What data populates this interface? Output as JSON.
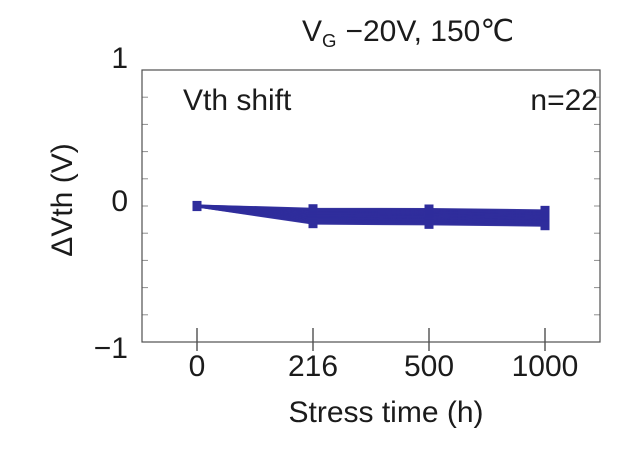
{
  "chart_data": {
    "type": "line",
    "title": "V_G −20V, 150℃",
    "title_parts": {
      "main": "V",
      "sub": "G",
      "rest": "−20V, 150℃"
    },
    "annotations": {
      "series_label": "Vth shift",
      "n_label": "n=22",
      "n": 22
    },
    "xlabel": "Stress time (h)",
    "ylabel": "ΔVth (V)",
    "x_categories": [
      0,
      216,
      500,
      1000
    ],
    "xtick_labels": [
      "0",
      "216",
      "500",
      "1000"
    ],
    "x_axis_note": "category ticks equally spaced",
    "ylim": [
      -1,
      1
    ],
    "ytick_labels": [
      "1",
      "0",
      "−1"
    ],
    "ytick_values": [
      1,
      0,
      -1
    ],
    "y_minor_step": 0.2,
    "n_series": 22,
    "series_color": "#2f2d9c",
    "axis_color": "#4f4f4f",
    "minor_tick_color": "#8f8f8f",
    "text_color": "#1b1b1b",
    "series": [
      [
        0.004,
        -0.02,
        -0.022,
        -0.032
      ],
      [
        0.004,
        -0.025,
        -0.027,
        -0.037
      ],
      [
        0.003,
        -0.03,
        -0.033,
        -0.043
      ],
      [
        0.003,
        -0.036,
        -0.038,
        -0.048
      ],
      [
        0.002,
        -0.041,
        -0.044,
        -0.054
      ],
      [
        0.002,
        -0.046,
        -0.049,
        -0.059
      ],
      [
        0.002,
        -0.051,
        -0.054,
        -0.064
      ],
      [
        0.001,
        -0.057,
        -0.06,
        -0.07
      ],
      [
        0.001,
        -0.062,
        -0.065,
        -0.075
      ],
      [
        0.001,
        -0.067,
        -0.07,
        -0.08
      ],
      [
        0.0,
        -0.072,
        -0.076,
        -0.086
      ],
      [
        0.0,
        -0.078,
        -0.081,
        -0.091
      ],
      [
        -0.001,
        -0.083,
        -0.087,
        -0.097
      ],
      [
        -0.001,
        -0.088,
        -0.092,
        -0.102
      ],
      [
        -0.001,
        -0.093,
        -0.097,
        -0.107
      ],
      [
        -0.002,
        -0.099,
        -0.103,
        -0.113
      ],
      [
        -0.002,
        -0.104,
        -0.108,
        -0.118
      ],
      [
        -0.002,
        -0.109,
        -0.113,
        -0.124
      ],
      [
        -0.003,
        -0.114,
        -0.119,
        -0.129
      ],
      [
        -0.003,
        -0.12,
        -0.124,
        -0.134
      ],
      [
        -0.004,
        -0.125,
        -0.13,
        -0.14
      ],
      [
        -0.004,
        -0.13,
        -0.135,
        -0.145
      ]
    ]
  }
}
